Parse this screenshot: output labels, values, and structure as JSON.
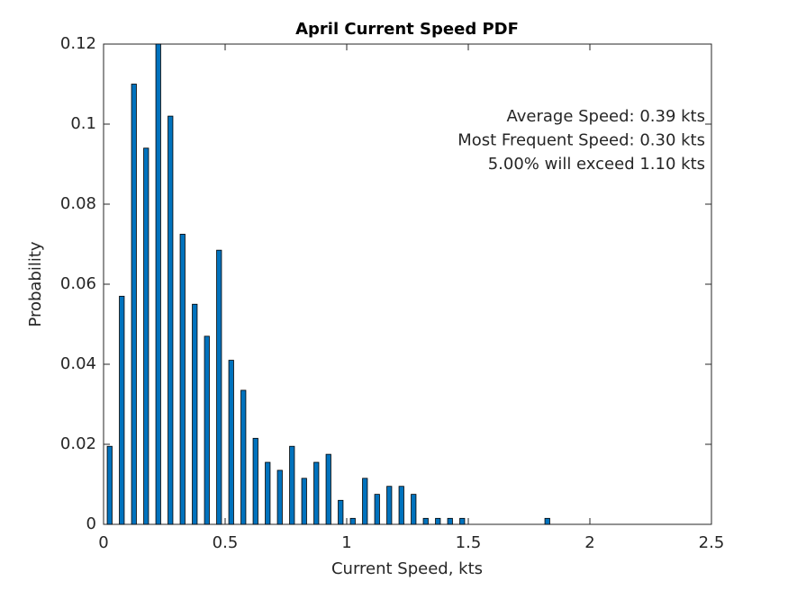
{
  "chart_data": {
    "type": "bar",
    "title": "April Current Speed PDF",
    "x_label": "Current Speed, kts",
    "y_label": "Probability",
    "annotations": [
      "Average Speed: 0.39 kts",
      "Most Frequent Speed: 0.30 kts",
      "5.00% will exceed 1.10 kts"
    ],
    "x": [
      0.025,
      0.075,
      0.125,
      0.175,
      0.225,
      0.275,
      0.325,
      0.375,
      0.425,
      0.475,
      0.525,
      0.575,
      0.625,
      0.675,
      0.725,
      0.775,
      0.825,
      0.875,
      0.925,
      0.975,
      1.025,
      1.075,
      1.125,
      1.175,
      1.225,
      1.275,
      1.325,
      1.375,
      1.425,
      1.475,
      1.525,
      1.575,
      1.625,
      1.675,
      1.725,
      1.775,
      1.825,
      1.875,
      1.925,
      1.975,
      2.025,
      2.075,
      2.125,
      2.175,
      2.225,
      2.275,
      2.325,
      2.375,
      2.425,
      2.475
    ],
    "values": [
      0.0195,
      0.057,
      0.11,
      0.094,
      0.12,
      0.102,
      0.0725,
      0.055,
      0.047,
      0.0685,
      0.041,
      0.0335,
      0.0215,
      0.0155,
      0.0135,
      0.0195,
      0.0115,
      0.0155,
      0.0175,
      0.006,
      0.0015,
      0.0115,
      0.0075,
      0.0095,
      0.0095,
      0.0075,
      0.0015,
      0.0015,
      0.0015,
      0.0015,
      0,
      0,
      0,
      0,
      0,
      0,
      0.0015,
      0,
      0,
      0,
      0,
      0,
      0,
      0,
      0,
      0,
      0,
      0,
      0,
      0
    ],
    "color": "#0072bd",
    "xlim": [
      0,
      2.5
    ],
    "xticks": [
      0,
      0.5,
      1,
      1.5,
      2,
      2.5
    ],
    "ylim": [
      0,
      0.12
    ],
    "yticks": [
      0,
      0.02,
      0.04,
      0.06,
      0.08,
      0.1,
      0.12
    ]
  }
}
